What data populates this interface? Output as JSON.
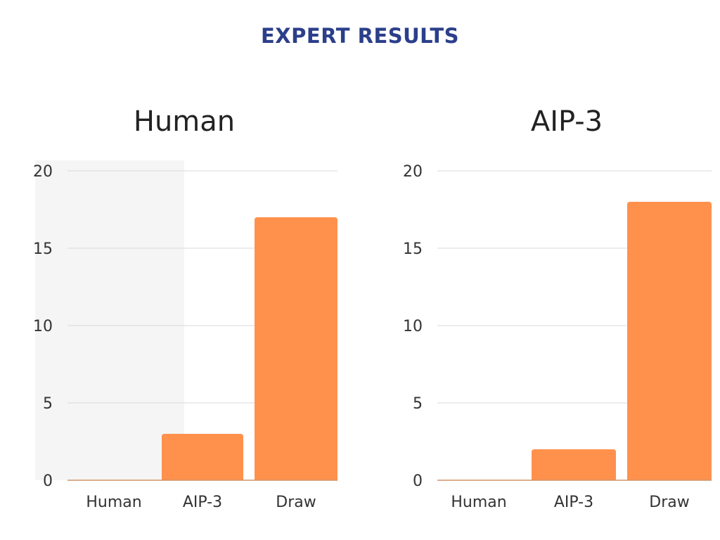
{
  "page": {
    "title": "EXPERT RESULTS"
  },
  "colors": {
    "title": "#2b3f8a",
    "bar": "#ff914d",
    "highlight": "#f5f5f5"
  },
  "chart_data": [
    {
      "type": "bar",
      "title": "Human",
      "categories": [
        "Human",
        "AIP-3",
        "Draw"
      ],
      "values": [
        0,
        3,
        17
      ],
      "ylim": [
        0,
        20
      ],
      "yticks": [
        "0",
        "5",
        "10",
        "15",
        "20"
      ],
      "grid": true,
      "highlighted_category": "Human"
    },
    {
      "type": "bar",
      "title": "AIP-3",
      "categories": [
        "Human",
        "AIP-3",
        "Draw"
      ],
      "values": [
        0,
        2,
        18
      ],
      "ylim": [
        0,
        20
      ],
      "yticks": [
        "0",
        "5",
        "10",
        "15",
        "20"
      ],
      "grid": true
    }
  ]
}
